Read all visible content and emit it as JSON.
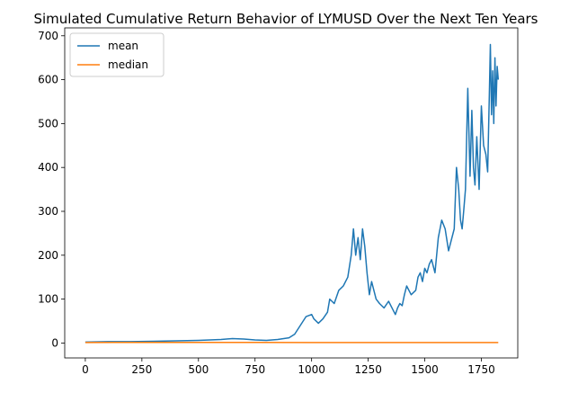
{
  "chart_data": {
    "type": "line",
    "title": "Simulated Cumulative Return Behavior of LYMUSD Over the Next Ten Years",
    "xlabel": "",
    "ylabel": "",
    "xlim": [
      -91,
      1911
    ],
    "ylim": [
      -34,
      718
    ],
    "x_ticks": [
      0,
      250,
      500,
      750,
      1000,
      1250,
      1500,
      1750
    ],
    "y_ticks": [
      0,
      100,
      200,
      300,
      400,
      500,
      600,
      700
    ],
    "grid": false,
    "legend_position": "upper-left",
    "series": [
      {
        "name": "mean",
        "color": "#1f77b4",
        "x": [
          0,
          100,
          200,
          300,
          400,
          500,
          550,
          600,
          650,
          700,
          750,
          800,
          850,
          900,
          925,
          950,
          975,
          1000,
          1010,
          1030,
          1050,
          1070,
          1080,
          1100,
          1120,
          1140,
          1160,
          1175,
          1185,
          1195,
          1205,
          1215,
          1225,
          1235,
          1245,
          1255,
          1265,
          1275,
          1285,
          1300,
          1320,
          1340,
          1360,
          1370,
          1380,
          1390,
          1400,
          1410,
          1420,
          1440,
          1460,
          1470,
          1480,
          1490,
          1500,
          1510,
          1520,
          1530,
          1545,
          1560,
          1575,
          1590,
          1605,
          1615,
          1630,
          1640,
          1650,
          1658,
          1665,
          1672,
          1680,
          1690,
          1700,
          1708,
          1715,
          1722,
          1730,
          1740,
          1750,
          1760,
          1770,
          1778,
          1785,
          1790,
          1795,
          1800,
          1805,
          1810,
          1815,
          1820,
          1825
        ],
        "y": [
          2,
          3,
          3,
          4,
          5,
          6,
          7,
          8,
          10,
          9,
          7,
          6,
          8,
          12,
          20,
          40,
          60,
          65,
          55,
          45,
          55,
          70,
          100,
          90,
          120,
          130,
          150,
          200,
          260,
          200,
          240,
          190,
          260,
          220,
          160,
          110,
          140,
          120,
          100,
          90,
          80,
          95,
          75,
          65,
          80,
          90,
          85,
          110,
          130,
          110,
          120,
          150,
          160,
          140,
          170,
          160,
          180,
          190,
          160,
          240,
          280,
          260,
          210,
          230,
          260,
          400,
          350,
          280,
          260,
          300,
          350,
          580,
          380,
          530,
          400,
          360,
          470,
          350,
          540,
          450,
          430,
          390,
          560,
          680,
          520,
          620,
          500,
          650,
          540,
          630,
          600
        ]
      },
      {
        "name": "median",
        "color": "#ff7f0e",
        "x": [
          0,
          250,
          500,
          750,
          1000,
          1250,
          1500,
          1825
        ],
        "y": [
          1,
          1.5,
          1.5,
          1.2,
          1,
          1,
          1,
          1
        ]
      }
    ]
  }
}
